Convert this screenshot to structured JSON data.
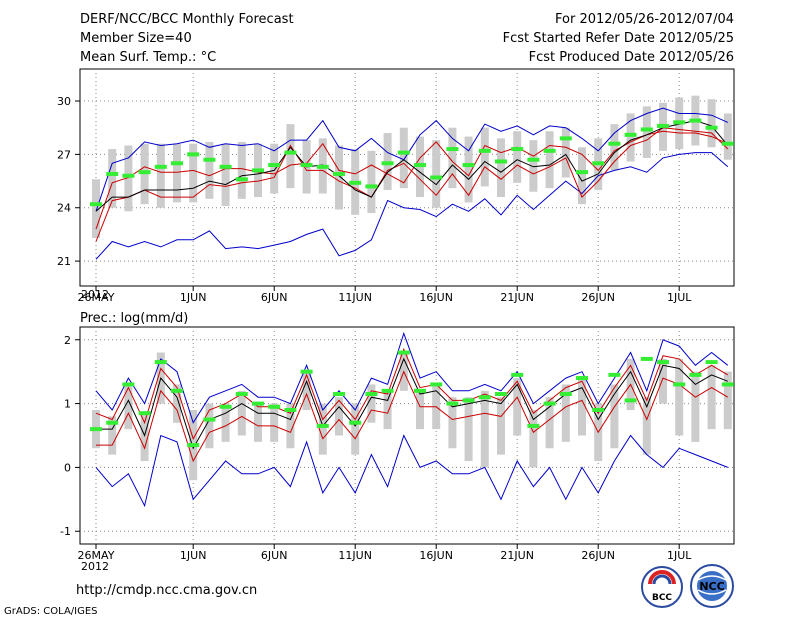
{
  "header": {
    "title": "DERF/NCC/BCC Monthly Forecast",
    "member_size": "Member Size=40",
    "variable": "Mean Surf. Temp.: °C",
    "period": "For 2012/05/26-2012/07/04",
    "start_ref": "Fcst Started Refer Date 2012/05/25",
    "produced": "Fcst Produced Date 2012/05/26"
  },
  "footer": {
    "url": "http://cmdp.ncc.cma.gov.cn",
    "credit": "GrADS: COLA/IGES",
    "logo_bcc": "BCC",
    "logo_ncc": "NCC"
  },
  "colors": {
    "envelope": "#0000cc",
    "spread": "#cc0000",
    "mean": "#000000",
    "box": "#cccccc",
    "marker": "#33ee33",
    "grid": "#888888"
  },
  "chart_data": [
    {
      "type": "line",
      "title": "Mean Surf. Temp.: °C",
      "xlabel": "",
      "ylabel": "°C",
      "ylim": [
        19.6,
        31.8
      ],
      "yticks": [
        21,
        24,
        27,
        30
      ],
      "grid": true,
      "x_tick_labels": [
        "26MAY",
        "1JUN",
        "6JUN",
        "11JUN",
        "16JUN",
        "21JUN",
        "26JUN",
        "1JUL"
      ],
      "x_tick_days": [
        0,
        6,
        11,
        16,
        21,
        26,
        31,
        36
      ],
      "year_label": "2012",
      "days": 40,
      "series": [
        {
          "name": "max",
          "values": [
            23.8,
            26.5,
            26.8,
            27.7,
            27.5,
            27.6,
            27.8,
            27.4,
            27.6,
            27.5,
            27.6,
            27.2,
            27.8,
            27.8,
            28.9,
            27.4,
            27.2,
            27.9,
            27.1,
            26.7,
            28.1,
            28.9,
            27.9,
            27.2,
            28.7,
            28.3,
            28.6,
            28.1,
            28.6,
            28.5,
            27.9,
            27.2,
            28.2,
            28.9,
            29.3,
            29.6,
            29.3,
            29.3,
            29.2,
            28.8
          ]
        },
        {
          "name": "upper",
          "values": [
            22.8,
            25.4,
            25.7,
            26.3,
            26.0,
            26.0,
            26.1,
            25.8,
            26.2,
            26.2,
            26.0,
            25.9,
            26.4,
            26.5,
            27.6,
            26.1,
            25.9,
            26.4,
            25.9,
            25.4,
            26.8,
            27.7,
            26.6,
            25.8,
            27.5,
            27.1,
            27.4,
            26.9,
            27.5,
            27.4,
            27.0,
            26.1,
            27.2,
            27.7,
            28.1,
            28.3,
            28.2,
            28.2,
            28.0,
            27.6
          ]
        },
        {
          "name": "mean",
          "values": [
            23.8,
            24.6,
            24.6,
            25.0,
            25.0,
            25.0,
            25.1,
            25.5,
            25.3,
            25.8,
            25.9,
            26.1,
            27.4,
            26.3,
            26.4,
            25.8,
            25.0,
            24.6,
            26.0,
            26.7,
            26.0,
            25.3,
            26.4,
            25.6,
            26.6,
            26.0,
            26.7,
            26.3,
            26.4,
            27.0,
            25.5,
            25.9,
            27.1,
            27.8,
            28.1,
            28.5,
            28.7,
            28.9,
            28.6,
            27.5
          ]
        },
        {
          "name": "lower",
          "values": [
            22.1,
            24.4,
            24.6,
            25.0,
            24.6,
            24.6,
            24.6,
            25.3,
            25.2,
            25.4,
            25.5,
            25.7,
            27.5,
            26.1,
            26.1,
            25.5,
            25.1,
            24.6,
            26.1,
            26.5,
            25.6,
            24.7,
            25.9,
            24.7,
            26.3,
            25.6,
            26.4,
            25.9,
            26.3,
            26.8,
            24.6,
            25.5,
            26.6,
            27.5,
            27.8,
            28.5,
            28.4,
            28.3,
            28.2,
            27.3
          ]
        },
        {
          "name": "min",
          "values": [
            21.1,
            22.1,
            21.8,
            22.1,
            21.8,
            22.2,
            22.2,
            22.7,
            21.7,
            21.8,
            21.7,
            21.9,
            22.1,
            22.5,
            22.8,
            21.3,
            21.6,
            22.2,
            24.4,
            24.0,
            23.9,
            23.5,
            24.2,
            23.8,
            24.5,
            23.6,
            24.7,
            23.9,
            24.7,
            25.5,
            24.8,
            25.8,
            26.1,
            26.3,
            26.0,
            26.8,
            27.0,
            27.1,
            27.1,
            26.3
          ]
        },
        {
          "name": "box_high",
          "values": [
            25.6,
            27.3,
            27.5,
            27.6,
            27.6,
            27.6,
            27.6,
            27.7,
            27.6,
            27.7,
            27.6,
            27.6,
            28.7,
            27.8,
            27.9,
            27.5,
            27.3,
            27.2,
            28.2,
            28.5,
            28.0,
            27.8,
            28.5,
            28.0,
            28.5,
            27.9,
            28.3,
            27.8,
            28.3,
            28.5,
            27.4,
            27.9,
            28.7,
            29.3,
            29.7,
            29.9,
            30.2,
            30.3,
            30.1,
            29.3
          ]
        },
        {
          "name": "box_low",
          "values": [
            22.3,
            24.0,
            23.8,
            24.2,
            24.0,
            24.3,
            24.3,
            24.5,
            24.1,
            24.5,
            24.6,
            24.8,
            25.1,
            24.8,
            24.8,
            23.9,
            23.6,
            23.7,
            25.0,
            25.1,
            24.6,
            24.0,
            25.1,
            24.3,
            25.2,
            24.6,
            25.4,
            24.9,
            25.1,
            25.7,
            24.2,
            25.0,
            26.1,
            26.6,
            26.8,
            27.2,
            27.3,
            27.5,
            27.4,
            26.7
          ]
        },
        {
          "name": "marker",
          "values": [
            24.2,
            25.9,
            25.8,
            26.0,
            26.3,
            26.5,
            27.0,
            26.7,
            26.3,
            25.6,
            26.1,
            26.4,
            27.1,
            26.4,
            26.3,
            25.9,
            25.4,
            25.2,
            26.5,
            27.1,
            26.4,
            25.7,
            27.3,
            26.4,
            27.2,
            26.6,
            27.3,
            26.7,
            27.2,
            27.9,
            26.0,
            26.5,
            27.6,
            28.1,
            28.4,
            28.6,
            28.8,
            28.9,
            28.5,
            27.6
          ]
        }
      ]
    },
    {
      "type": "line",
      "title": "Prec.: log(mm/d)",
      "xlabel": "",
      "ylabel": "log(mm/d)",
      "ylim": [
        -1.2,
        2.2
      ],
      "yticks": [
        -1,
        0,
        1,
        2
      ],
      "grid": true,
      "x_tick_labels": [
        "26MAY",
        "1JUN",
        "6JUN",
        "11JUN",
        "16JUN",
        "21JUN",
        "26JUN",
        "1JUL"
      ],
      "x_tick_days": [
        0,
        6,
        11,
        16,
        21,
        26,
        31,
        36
      ],
      "year_label": "2012",
      "days": 40,
      "series": [
        {
          "name": "max",
          "values": [
            1.2,
            0.9,
            1.4,
            1.0,
            1.7,
            1.5,
            0.7,
            1.1,
            1.2,
            1.3,
            1.1,
            1.1,
            1.0,
            1.6,
            0.9,
            1.2,
            0.9,
            1.4,
            1.3,
            2.1,
            1.4,
            1.5,
            1.2,
            1.2,
            1.3,
            1.2,
            1.5,
            1.0,
            1.2,
            1.4,
            1.5,
            1.0,
            1.4,
            1.8,
            1.2,
            2.0,
            1.9,
            1.6,
            1.8,
            1.6
          ]
        },
        {
          "name": "upper",
          "values": [
            0.85,
            0.75,
            1.25,
            0.7,
            1.55,
            1.25,
            0.45,
            0.9,
            1.0,
            1.15,
            0.95,
            0.95,
            0.85,
            1.45,
            0.75,
            1.05,
            0.75,
            1.2,
            1.15,
            1.85,
            1.25,
            1.3,
            1.05,
            1.05,
            1.15,
            1.05,
            1.35,
            0.85,
            1.05,
            1.25,
            1.35,
            0.85,
            1.25,
            1.6,
            1.05,
            1.75,
            1.7,
            1.45,
            1.6,
            1.45
          ]
        },
        {
          "name": "mean",
          "values": [
            0.6,
            0.6,
            1.05,
            0.5,
            1.4,
            1.1,
            0.3,
            0.75,
            0.85,
            1.0,
            0.85,
            0.85,
            0.75,
            1.35,
            0.65,
            0.95,
            0.65,
            1.1,
            1.05,
            1.7,
            1.15,
            1.2,
            0.95,
            1.0,
            1.05,
            1.0,
            1.3,
            0.75,
            0.95,
            1.15,
            1.25,
            0.75,
            1.15,
            1.5,
            0.95,
            1.6,
            1.55,
            1.3,
            1.45,
            1.35
          ]
        },
        {
          "name": "lower",
          "values": [
            0.35,
            0.35,
            0.85,
            0.3,
            1.2,
            0.9,
            0.1,
            0.55,
            0.65,
            0.8,
            0.65,
            0.65,
            0.55,
            1.15,
            0.45,
            0.75,
            0.45,
            0.9,
            0.85,
            1.5,
            0.95,
            0.95,
            0.75,
            0.8,
            0.85,
            0.8,
            1.1,
            0.55,
            0.75,
            0.95,
            1.05,
            0.55,
            0.95,
            1.3,
            0.75,
            1.4,
            1.3,
            1.1,
            1.25,
            1.1
          ]
        },
        {
          "name": "min",
          "values": [
            0.0,
            -0.3,
            -0.1,
            -0.6,
            0.5,
            0.4,
            -0.5,
            -0.2,
            0.1,
            -0.1,
            -0.1,
            0.0,
            -0.3,
            0.4,
            -0.4,
            0.0,
            -0.4,
            0.2,
            -0.3,
            0.5,
            0.0,
            0.1,
            -0.1,
            -0.1,
            0.0,
            -0.5,
            0.1,
            -0.3,
            0.0,
            -0.5,
            0.0,
            -0.4,
            0.1,
            0.5,
            0.2,
            0.0,
            0.3,
            0.2,
            0.1,
            0.0
          ]
        },
        {
          "name": "box_high",
          "values": [
            0.9,
            0.8,
            1.3,
            0.85,
            1.8,
            1.3,
            0.9,
            1.0,
            1.0,
            1.2,
            1.0,
            1.0,
            1.0,
            1.5,
            1.0,
            1.1,
            1.0,
            1.3,
            1.2,
            1.8,
            1.2,
            1.3,
            1.1,
            1.1,
            1.2,
            1.1,
            1.4,
            0.9,
            1.1,
            1.3,
            1.4,
            1.0,
            1.3,
            1.7,
            1.1,
            1.7,
            1.7,
            1.5,
            1.6,
            1.5
          ]
        },
        {
          "name": "box_low",
          "values": [
            0.3,
            0.2,
            0.6,
            0.1,
            1.0,
            0.7,
            -0.2,
            0.3,
            0.4,
            0.5,
            0.4,
            0.4,
            0.3,
            0.9,
            0.2,
            0.5,
            0.2,
            0.7,
            0.6,
            1.2,
            0.6,
            0.6,
            0.3,
            0.1,
            0.0,
            0.2,
            0.5,
            0.0,
            0.3,
            0.4,
            0.5,
            0.1,
            0.3,
            0.9,
            0.2,
            1.0,
            0.5,
            0.4,
            0.6,
            0.6
          ]
        },
        {
          "name": "marker",
          "values": [
            0.6,
            0.7,
            1.3,
            0.85,
            1.65,
            1.2,
            0.35,
            0.75,
            0.95,
            1.15,
            1.0,
            0.95,
            0.9,
            1.5,
            0.65,
            1.15,
            0.7,
            1.15,
            1.2,
            1.8,
            1.2,
            1.3,
            1.0,
            1.05,
            1.1,
            1.15,
            1.45,
            0.65,
            1.0,
            1.15,
            1.4,
            0.9,
            1.45,
            1.05,
            1.7,
            1.65,
            1.3,
            1.45,
            1.65,
            1.3
          ]
        }
      ]
    }
  ]
}
